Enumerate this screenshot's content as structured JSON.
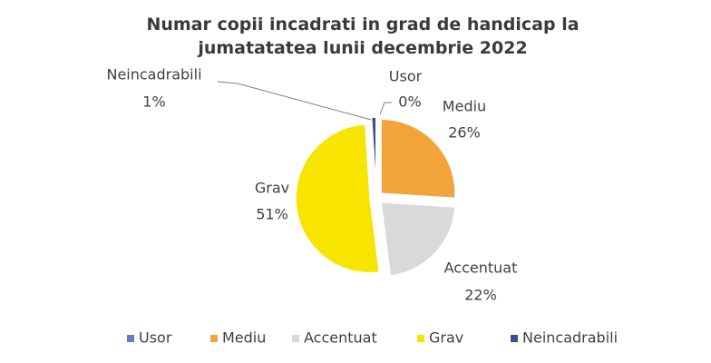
{
  "chart_data": {
    "type": "pie",
    "title": "Numar copii incadrati in grad de handicap la jumatatatea lunii decembrie 2022",
    "categories": [
      "Usor",
      "Mediu",
      "Accentuat",
      "Grav",
      "Neincadrabili"
    ],
    "values": [
      0,
      26,
      22,
      51,
      1
    ],
    "value_labels": [
      "0%",
      "26%",
      "22%",
      "51%",
      "1%"
    ],
    "colors": [
      "#5b80c8",
      "#f2a43a",
      "#d9d9d9",
      "#f7e400",
      "#3b4f8e"
    ],
    "legend": "bottom"
  }
}
